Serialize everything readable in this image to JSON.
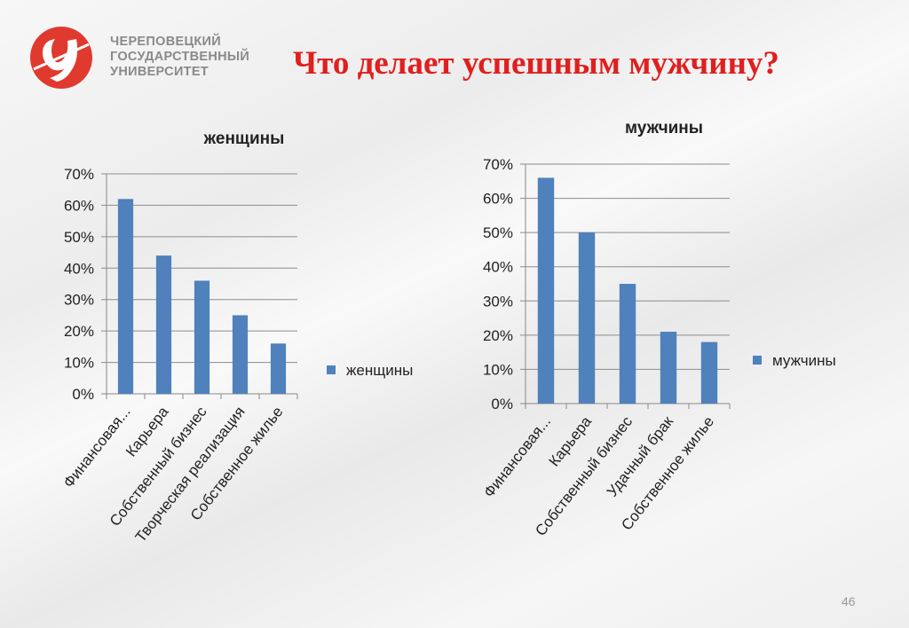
{
  "logo": {
    "lines": [
      "ЧЕРЕПОВЕЦКИЙ",
      "ГОСУДАРСТВЕННЫЙ",
      "УНИВЕРСИТЕТ"
    ],
    "color": "#e03a2f"
  },
  "slide": {
    "title": "Что делает успешным мужчину?",
    "page_number": "46",
    "title_color": "#e01f1f"
  },
  "chart_data": [
    {
      "type": "bar",
      "title": "женщины",
      "categories": [
        "Финансовая...",
        "Карьера",
        "Собственный бизнес",
        "Творческая реализация",
        "Собственное жилье"
      ],
      "series": [
        {
          "name": "женщины",
          "values": [
            62,
            44,
            36,
            25,
            16
          ],
          "color": "#4f81bd"
        }
      ],
      "ylim": [
        0,
        70
      ],
      "yticks": [
        "0%",
        "10%",
        "20%",
        "30%",
        "40%",
        "50%",
        "60%",
        "70%"
      ],
      "grid": true,
      "legend": "right"
    },
    {
      "type": "bar",
      "title": "мужчины",
      "categories": [
        "Финансовая...",
        "Карьера",
        "Собственный бизнес",
        "Удачный брак",
        "Собственное жилье"
      ],
      "series": [
        {
          "name": "мужчины",
          "values": [
            66,
            50,
            35,
            21,
            18
          ],
          "color": "#4f81bd"
        }
      ],
      "ylim": [
        0,
        70
      ],
      "yticks": [
        "0%",
        "10%",
        "20%",
        "30%",
        "40%",
        "50%",
        "60%",
        "70%"
      ],
      "grid": true,
      "legend": "right"
    }
  ]
}
